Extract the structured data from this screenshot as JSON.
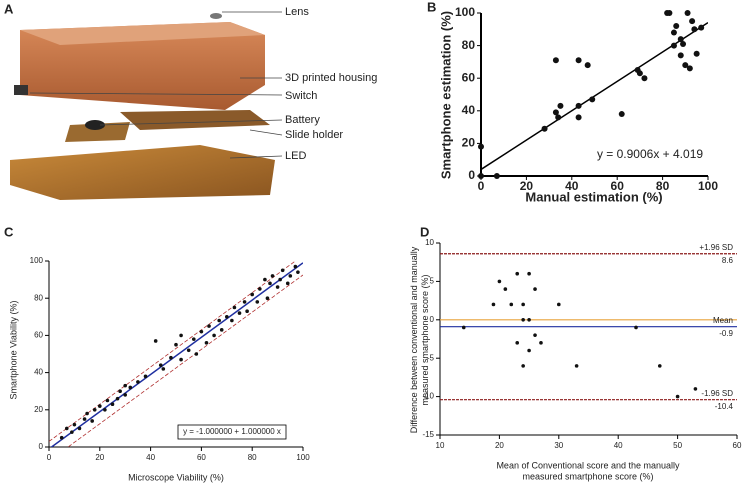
{
  "diagram": {
    "panel_label": "A",
    "labels": [
      "Lens",
      "3D printed housing",
      "Switch",
      "Battery",
      "Slide holder",
      "LED"
    ]
  },
  "chart_data": [
    {
      "type": "scatter",
      "panel_label": "B",
      "x_label": [
        "Manual estimation (%)"
      ],
      "y_label": [
        "Smartphone estimation (%)"
      ],
      "x": [
        0,
        0,
        7,
        28,
        33,
        33,
        34,
        35,
        43,
        43,
        43,
        47,
        49,
        62,
        69,
        70,
        72,
        82,
        83,
        85,
        85,
        86,
        88,
        88,
        89,
        90,
        91,
        92,
        93,
        94,
        95,
        97
      ],
      "values": [
        18,
        0,
        0,
        29,
        39,
        71,
        36,
        43,
        71,
        43,
        36,
        68,
        47,
        38,
        65,
        63,
        60,
        100,
        100,
        80,
        88,
        92,
        74,
        84,
        81,
        68,
        100,
        66,
        95,
        90,
        75,
        91
      ],
      "color": "#111111",
      "xlim": [
        0,
        100
      ],
      "xticks": [
        0,
        20,
        40,
        60,
        80,
        100
      ],
      "ylim": [
        0,
        100
      ],
      "yticks": [
        0,
        20,
        40,
        60,
        80,
        100
      ],
      "lines": [
        {
          "slope": 0.9006,
          "intercept": 4.019,
          "color": "#000000",
          "dash": false
        }
      ],
      "equation": "y = 0.9006x + 4.019"
    },
    {
      "type": "scatter",
      "panel_label": "C",
      "x_label": [
        "Microscope Viability (%)"
      ],
      "y_label": [
        "Smartphone Viability (%)"
      ],
      "x": [
        5,
        7,
        9,
        10,
        12,
        14,
        15,
        17,
        18,
        20,
        22,
        23,
        25,
        27,
        28,
        30,
        30,
        32,
        35,
        38,
        42,
        44,
        45,
        48,
        50,
        52,
        52,
        55,
        57,
        58,
        60,
        62,
        63,
        65,
        67,
        68,
        70,
        72,
        73,
        75,
        77,
        78,
        80,
        82,
        83,
        85,
        86,
        87,
        88,
        90,
        91,
        92,
        94,
        95,
        97,
        98
      ],
      "values": [
        5,
        10,
        8,
        12,
        10,
        15,
        18,
        14,
        20,
        22,
        20,
        25,
        23,
        26,
        30,
        33,
        28,
        32,
        35,
        38,
        57,
        44,
        42,
        48,
        55,
        47,
        60,
        52,
        58,
        50,
        62,
        56,
        65,
        60,
        68,
        63,
        70,
        68,
        75,
        72,
        78,
        73,
        82,
        78,
        85,
        90,
        80,
        88,
        92,
        86,
        90,
        95,
        88,
        92,
        97,
        94
      ],
      "color": "#111111",
      "xlim": [
        0,
        100
      ],
      "xticks": [
        0,
        20,
        40,
        60,
        80,
        100
      ],
      "ylim": [
        0,
        100
      ],
      "yticks": [
        0,
        20,
        40,
        60,
        80,
        100
      ],
      "lines": [
        {
          "slope": 1,
          "intercept": -1,
          "color": "#1f2fa0",
          "dash": false
        },
        {
          "slope": 1,
          "intercept": 3,
          "color": "#b03030",
          "dash": true
        },
        {
          "slope": 1,
          "intercept": -7.5,
          "color": "#b03030",
          "dash": true
        }
      ],
      "equation": "y = -1.000000 + 1.000000 x"
    },
    {
      "type": "scatter",
      "panel_label": "D",
      "x_label": [
        "Mean of Conventional score and the manually",
        "measured smartphone score (%)"
      ],
      "y_label": [
        "Difference between conventional and manually",
        "measured smartphone score (%)"
      ],
      "x": [
        14,
        19,
        20,
        21,
        22,
        23,
        23,
        24,
        24,
        24,
        25,
        25,
        25,
        26,
        26,
        27,
        30,
        33,
        43,
        47,
        50,
        53
      ],
      "values": [
        -1,
        2,
        5,
        4,
        2,
        -3,
        6,
        -6,
        0,
        2,
        6,
        0,
        -4,
        4,
        -2,
        -3,
        2,
        -6,
        -1,
        -6,
        -10,
        -9
      ],
      "color": "#111111",
      "xlim": [
        10,
        60
      ],
      "xticks": [
        10,
        20,
        30,
        40,
        50,
        60
      ],
      "ylim": [
        -15,
        10
      ],
      "yticks": [
        -15,
        -10,
        -5,
        0,
        5,
        10
      ],
      "ref_lines": [
        {
          "value": 8.6,
          "label": "+1.96 SD",
          "color": "#8b1a1a"
        },
        {
          "value": 0,
          "color": "#e8a33c"
        },
        {
          "value": -0.9,
          "label": "Mean",
          "color": "#1f2fa0"
        },
        {
          "value": -10.4,
          "label": "-1.96 SD",
          "color": "#8b1a1a"
        }
      ]
    }
  ]
}
